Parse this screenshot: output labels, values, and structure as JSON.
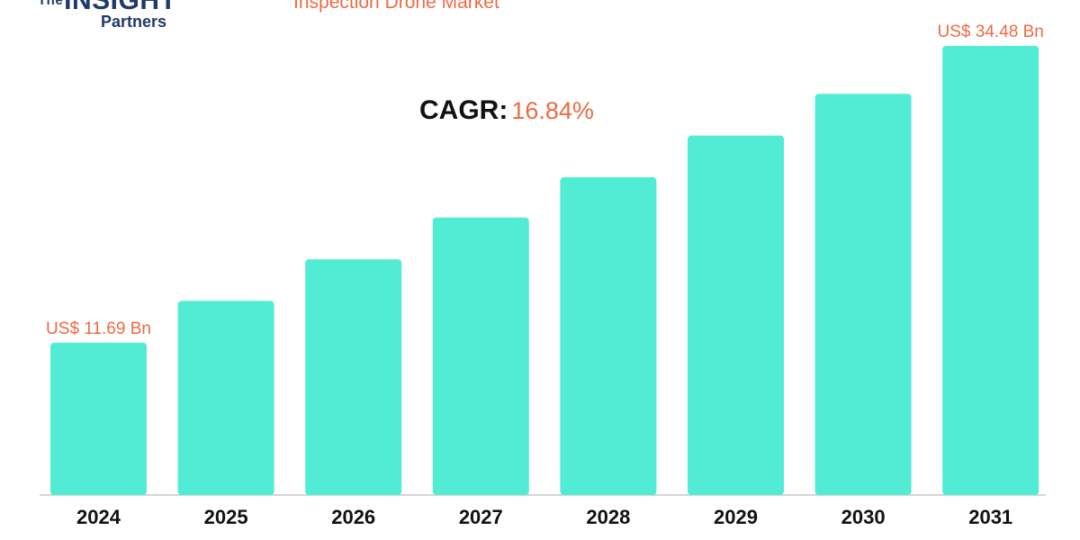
{
  "logo": {
    "prefix": "The",
    "name": "INSIGHT",
    "sub": "Partners"
  },
  "colors": {
    "bar": "#52ecd4",
    "accent": "#ee6a43",
    "text": "#111111"
  },
  "chart_data": {
    "type": "bar",
    "title": "Inspection Drone Market",
    "annotation": {
      "label": "CAGR:",
      "value": "16.84%"
    },
    "categories": [
      "2024",
      "2025",
      "2026",
      "2027",
      "2028",
      "2029",
      "2030",
      "2031"
    ],
    "values": [
      11.69,
      14.9,
      18.1,
      21.3,
      24.4,
      27.6,
      30.8,
      34.48
    ],
    "data_labels": [
      "US$ 11.69 Bn",
      "",
      "",
      "",
      "",
      "",
      "",
      "US$ 34.48 Bn"
    ],
    "unit": "US$ Bn",
    "ylim": [
      0,
      34.48
    ],
    "grid": false,
    "legend": "none"
  }
}
